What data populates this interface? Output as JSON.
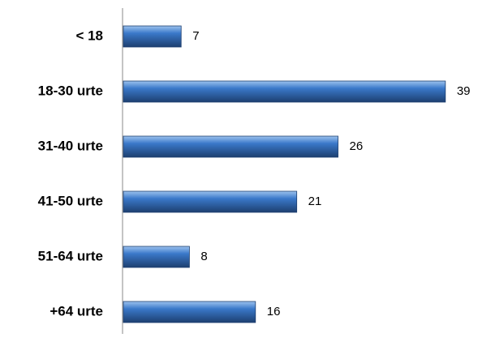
{
  "chart_data": {
    "type": "bar",
    "orientation": "horizontal",
    "categories": [
      "< 18",
      "18-30 urte",
      "31-40 urte",
      "41-50 urte",
      "51-64 urte",
      "+64 urte"
    ],
    "values": [
      7,
      39,
      26,
      21,
      8,
      16
    ],
    "color": "#3a78c9",
    "xlim": [
      0,
      40
    ]
  }
}
